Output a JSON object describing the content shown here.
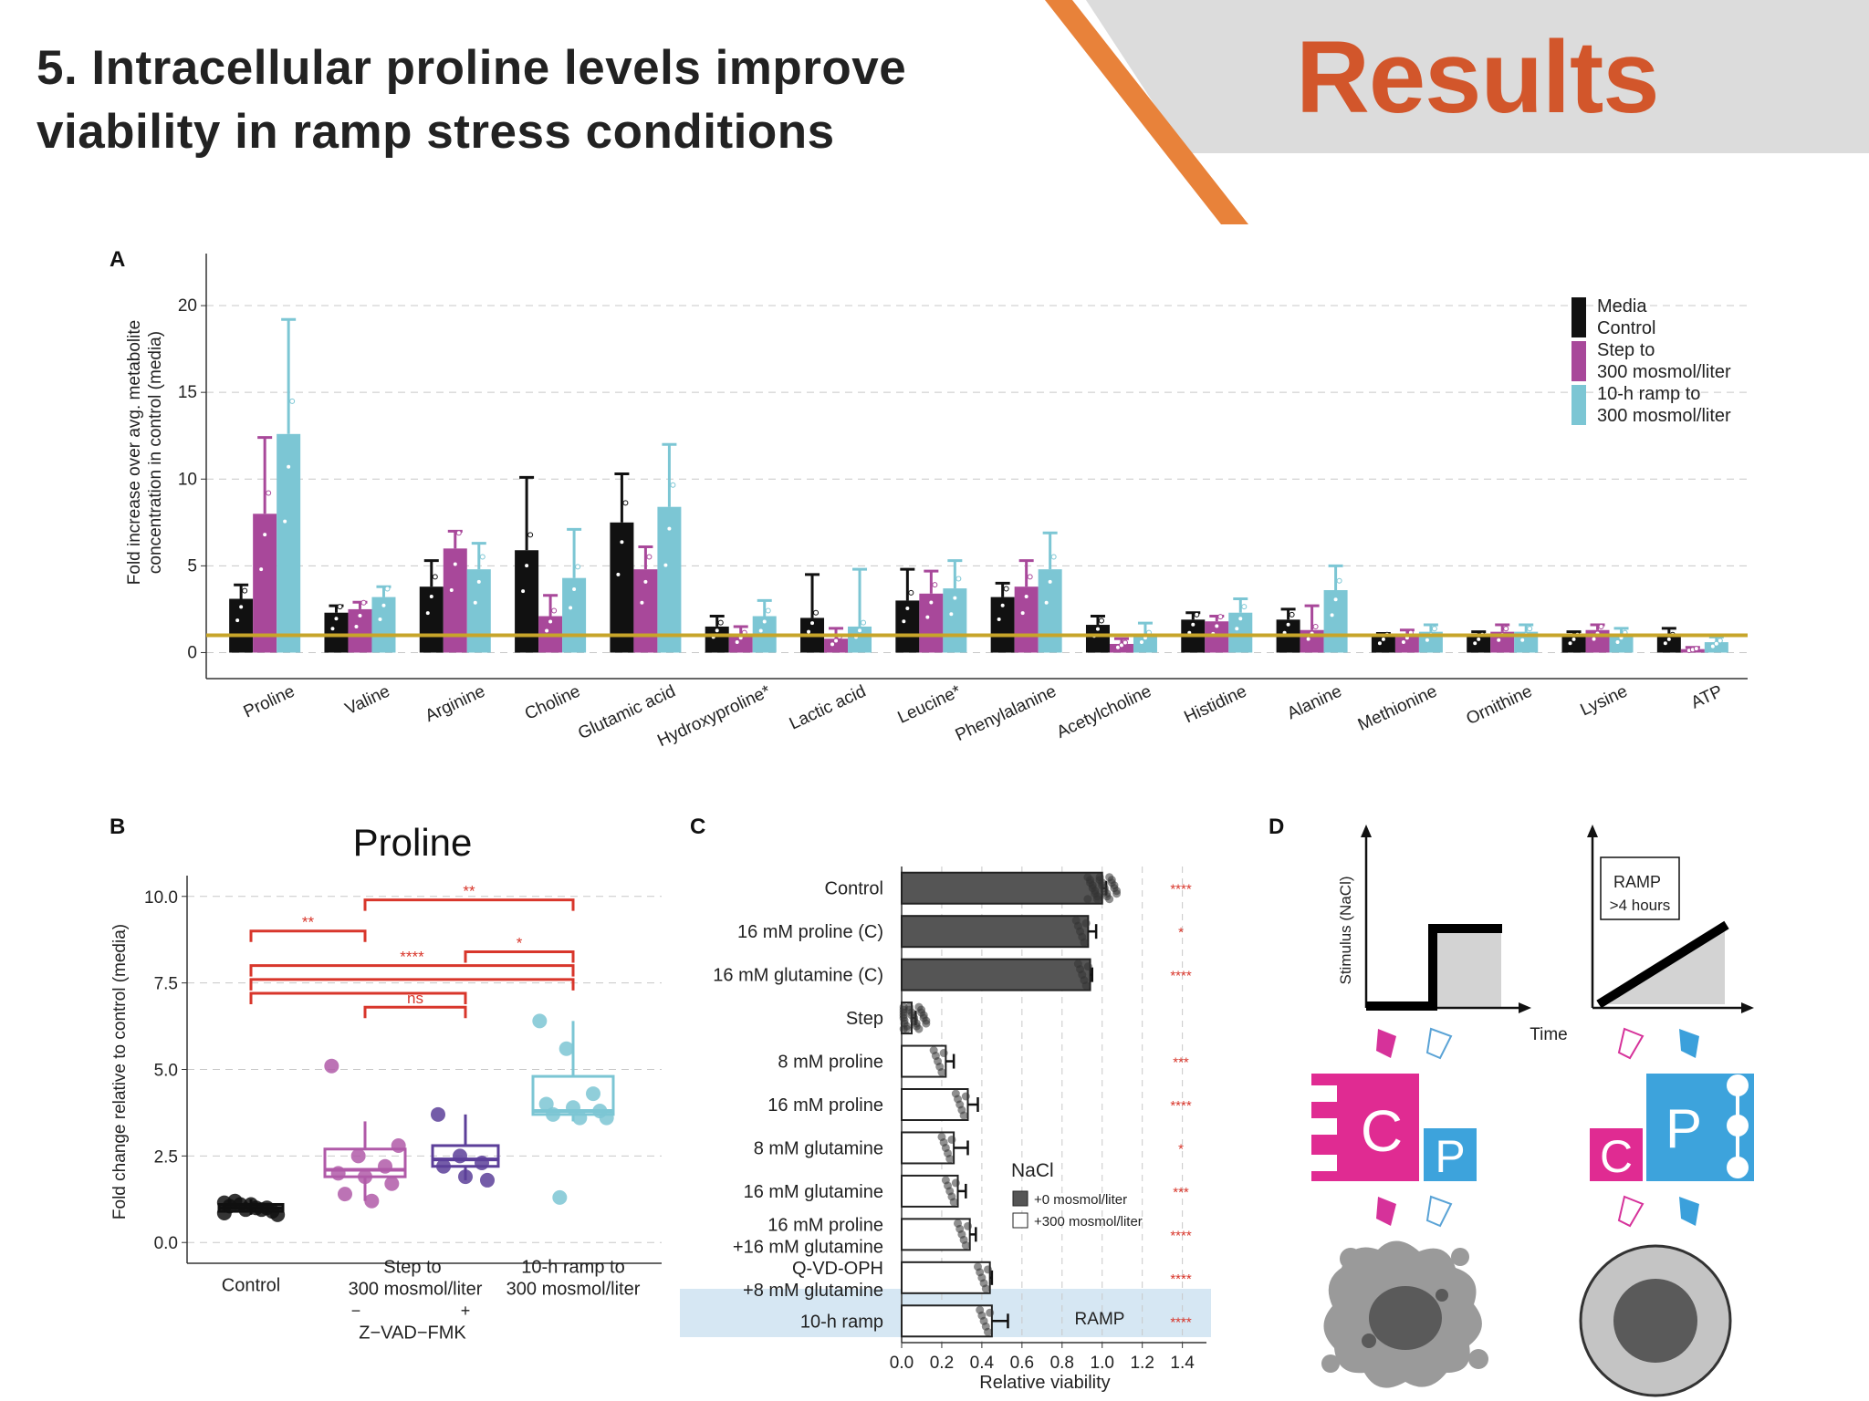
{
  "slide": {
    "title_line1": "5. Intracellular proline levels improve",
    "title_line2": "viability in ramp stress conditions",
    "section_label": "Results",
    "colors": {
      "accent_orange": "#e8823a",
      "banner_gray": "#dcdcdc",
      "results_text": "#d2562b"
    }
  },
  "chart_data": [
    {
      "panel": "A",
      "type": "bar",
      "ylabel_line1": "Fold increase over avg. metabolite",
      "ylabel_line2": "concentration in control (media)",
      "ylim": [
        -1.5,
        23
      ],
      "yticks": [
        "0",
        "5",
        "10",
        "15",
        "20"
      ],
      "ytick_values": [
        0,
        5,
        10,
        15,
        20
      ],
      "reference_line": 1,
      "categories": [
        "Proline",
        "Valine",
        "Arginine",
        "Choline",
        "Glutamic acid",
        "Hydroxyproline*",
        "Lactic acid",
        "Leucine*",
        "Phenylalanine",
        "Acetylcholine",
        "Histidine",
        "Alanine",
        "Methionine",
        "Ornithine",
        "Lysine",
        "ATP"
      ],
      "series": [
        {
          "name": "Media Control",
          "color": "#111111",
          "values": [
            3.1,
            2.3,
            3.8,
            5.9,
            7.5,
            1.5,
            2.0,
            3.0,
            3.2,
            1.6,
            1.9,
            1.9,
            0.9,
            0.9,
            0.9,
            0.9
          ],
          "errors": [
            0.8,
            0.4,
            1.5,
            4.2,
            2.8,
            0.6,
            2.5,
            1.8,
            0.8,
            0.5,
            0.4,
            0.6,
            0.2,
            0.3,
            0.3,
            0.5
          ]
        },
        {
          "name": "Step to 300 mosmol/liter",
          "color": "#a8489a",
          "values": [
            8.0,
            2.5,
            6.0,
            2.1,
            4.8,
            1.0,
            0.8,
            3.4,
            3.8,
            0.5,
            1.8,
            1.3,
            1.0,
            1.2,
            1.3,
            0.2
          ],
          "errors": [
            4.4,
            0.4,
            1.0,
            1.2,
            1.3,
            0.5,
            0.6,
            1.3,
            1.5,
            0.3,
            0.3,
            1.4,
            0.3,
            0.4,
            0.3,
            0.1
          ]
        },
        {
          "name": "10-h ramp to 300 mosmol/liter",
          "color": "#7cc6d4",
          "values": [
            12.6,
            3.2,
            4.8,
            4.3,
            8.4,
            2.1,
            1.5,
            3.7,
            4.8,
            1.0,
            2.3,
            3.6,
            1.2,
            1.2,
            1.0,
            0.6
          ],
          "errors": [
            6.6,
            0.6,
            1.5,
            2.8,
            3.6,
            0.9,
            3.3,
            1.6,
            2.1,
            0.7,
            0.8,
            1.4,
            0.4,
            0.4,
            0.4,
            0.3
          ]
        }
      ],
      "legend": [
        "Media",
        "Control",
        "Step to",
        "300 mosmol/liter",
        "10-h ramp to",
        "300 mosmol/liter"
      ]
    },
    {
      "panel": "B",
      "type": "box",
      "title": "Proline",
      "ylabel": "Fold change relative to control (media)",
      "ylim": [
        -0.6,
        10.6
      ],
      "yticks": [
        "0.0",
        "2.5",
        "5.0",
        "7.5",
        "10.0"
      ],
      "ytick_values": [
        0,
        2.5,
        5,
        7.5,
        10
      ],
      "group_labels": [
        "Control",
        "Step to",
        "300 mosmol/liter",
        "10-h ramp to",
        "300 mosmol/liter"
      ],
      "treatment_minus": "−",
      "treatment_plus": "+",
      "treatment_label": "Z−VAD−FMK",
      "groups": [
        {
          "name": "Control",
          "color": "#111111",
          "q1": 0.9,
          "median": 1.0,
          "q3": 1.1,
          "min": 0.8,
          "max": 1.25,
          "points": [
            0.85,
            0.95,
            1.0,
            1.05,
            1.1,
            0.9,
            1.2,
            1.0,
            0.8,
            1.1,
            0.95,
            1.15
          ]
        },
        {
          "name": "Step",
          "color": "#b05aa8",
          "q1": 1.9,
          "median": 2.1,
          "q3": 2.7,
          "min": 1.2,
          "max": 3.5,
          "points": [
            5.1,
            2.5,
            2.2,
            2.0,
            1.9,
            1.7,
            1.4,
            1.2,
            2.8
          ]
        },
        {
          "name": "Step + Z-VAD-FMK",
          "color": "#5c3f99",
          "q1": 2.2,
          "median": 2.4,
          "q3": 2.8,
          "min": 1.8,
          "max": 3.7,
          "points": [
            3.7,
            2.5,
            2.3,
            2.2,
            1.9,
            1.8
          ]
        },
        {
          "name": "10-h ramp",
          "color": "#7cc6d4",
          "q1": 3.7,
          "median": 3.8,
          "q3": 4.8,
          "min": 3.5,
          "max": 6.4,
          "points": [
            6.4,
            5.6,
            4.3,
            4.0,
            3.9,
            3.8,
            3.7,
            3.6,
            3.6,
            1.3
          ]
        }
      ],
      "significance": [
        {
          "from": 0,
          "to": 1,
          "label": "**"
        },
        {
          "from": 1,
          "to": 3,
          "label": "**"
        },
        {
          "from": 0,
          "to": 3,
          "label": "****"
        },
        {
          "from": 2,
          "to": 3,
          "label": "*"
        },
        {
          "from": 0,
          "to": 3,
          "label": ""
        },
        {
          "from": 1,
          "to": 2,
          "label": "ns"
        },
        {
          "from": 0,
          "to": 2,
          "label": ""
        }
      ]
    },
    {
      "panel": "C",
      "type": "bar",
      "orientation": "horizontal",
      "xlabel": "Relative viability",
      "xlim": [
        0,
        1.52
      ],
      "xticks": [
        "0.0",
        "0.2",
        "0.4",
        "0.6",
        "0.8",
        "1.0",
        "1.2",
        "1.4"
      ],
      "xtick_values": [
        0,
        0.2,
        0.4,
        0.6,
        0.8,
        1.0,
        1.2,
        1.4
      ],
      "categories": [
        {
          "line1": "Control",
          "line2": ""
        },
        {
          "line1": "16 mM proline (C)",
          "line2": ""
        },
        {
          "line1": "16 mM glutamine (C)",
          "line2": ""
        },
        {
          "line1": "Step",
          "line2": ""
        },
        {
          "line1": "8 mM proline",
          "line2": ""
        },
        {
          "line1": "16 mM proline",
          "line2": ""
        },
        {
          "line1": "8 mM glutamine",
          "line2": ""
        },
        {
          "line1": "16 mM glutamine",
          "line2": ""
        },
        {
          "line1": "16 mM proline",
          "line2": "+16 mM glutamine"
        },
        {
          "line1": "Q-VD-OPH",
          "line2": "+8 mM glutamine"
        },
        {
          "line1": "10-h ramp",
          "line2": ""
        }
      ],
      "values": [
        1.0,
        0.93,
        0.94,
        0.05,
        0.22,
        0.33,
        0.26,
        0.28,
        0.34,
        0.44,
        0.45
      ],
      "errors": [
        0.02,
        0.04,
        0.01,
        0.02,
        0.04,
        0.05,
        0.07,
        0.04,
        0.03,
        0.01,
        0.08
      ],
      "nacl": [
        "+0",
        "+0",
        "+0",
        "+300",
        "+300",
        "+300",
        "+300",
        "+300",
        "+300",
        "+300",
        "+300"
      ],
      "significance": [
        "****",
        "*",
        "****",
        "",
        "***",
        "****",
        "*",
        "***",
        "****",
        "****",
        "****"
      ],
      "legend_title": "NaCl",
      "legend_items": [
        "+0 mosmol/liter",
        "+300 mosmol/liter"
      ],
      "highlight_label": "RAMP"
    },
    {
      "panel": "D",
      "type": "schematic",
      "ylabel": "Stimulus (NaCl)",
      "xlabel": "Time",
      "ramp_box_line1": "RAMP",
      "ramp_box_line2": ">4 hours",
      "cell_c": "C",
      "cell_p": "P"
    }
  ]
}
